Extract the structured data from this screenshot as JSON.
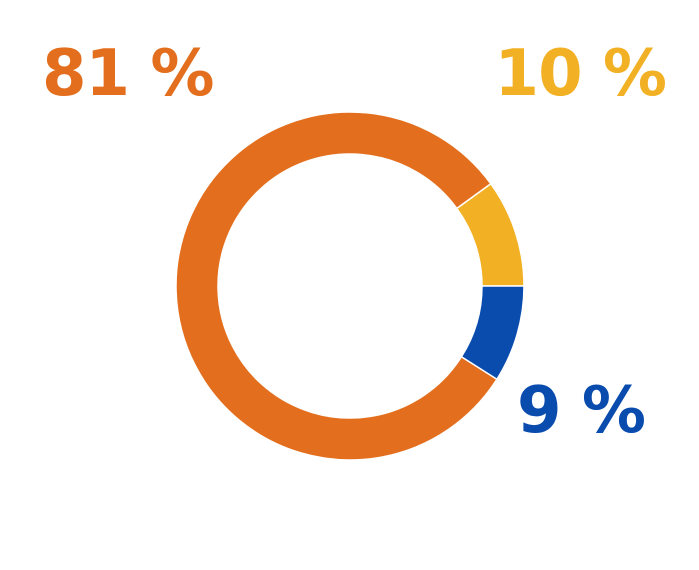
{
  "chart_data": {
    "type": "pie",
    "variant": "donut",
    "start_angle_deg": 0,
    "direction": "counterclockwise",
    "slices": [
      {
        "label": "10 %",
        "value": 10,
        "color": "#F2B124"
      },
      {
        "label": "81 %",
        "value": 81,
        "color": "#E36F1E"
      },
      {
        "label": "9 %",
        "value": 9,
        "color": "#0A4CAE"
      }
    ]
  }
}
